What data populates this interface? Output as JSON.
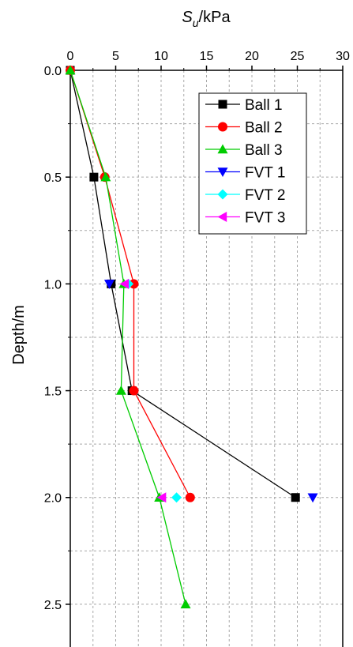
{
  "chart_data": {
    "type": "scatter",
    "xlabel_main": "S",
    "xlabel_sub": "u",
    "xlabel_unit": "/kPa",
    "ylabel": "Depth/m",
    "xlim": [
      0,
      30
    ],
    "ylim": [
      0,
      2.7
    ],
    "y_reversed": true,
    "x_axis_position": "top",
    "grid": true,
    "legend_position": "top-right",
    "x_ticks": [
      "0",
      "5",
      "10",
      "15",
      "20",
      "25",
      "30"
    ],
    "y_ticks": [
      "0.0",
      "0.5",
      "1.0",
      "1.5",
      "2.0",
      "2.5"
    ],
    "series": [
      {
        "name": "Ball 1",
        "color": "#000000",
        "marker": "square",
        "line": true,
        "x": [
          0,
          2.6,
          4.5,
          6.8,
          24.8
        ],
        "y": [
          0,
          0.5,
          1.0,
          1.5,
          2.0
        ]
      },
      {
        "name": "Ball 2",
        "color": "#ff0000",
        "marker": "circle",
        "line": true,
        "x": [
          0,
          3.8,
          7.0,
          7.0,
          13.2
        ],
        "y": [
          0,
          0.5,
          1.0,
          1.5,
          2.0
        ]
      },
      {
        "name": "Ball 3",
        "color": "#00cc00",
        "marker": "triangle-up",
        "line": true,
        "x": [
          0,
          3.9,
          5.9,
          5.6,
          9.8,
          12.7
        ],
        "y": [
          0,
          0.5,
          1.0,
          1.5,
          2.0,
          2.5
        ]
      },
      {
        "name": "FVT 1",
        "color": "#0000ff",
        "marker": "triangle-down",
        "line": false,
        "x": [
          4.3,
          26.7
        ],
        "y": [
          1.0,
          2.0
        ]
      },
      {
        "name": "FVT 2",
        "color": "#00ffff",
        "marker": "diamond",
        "line": false,
        "x": [
          6.4,
          11.7
        ],
        "y": [
          1.0,
          2.0
        ]
      },
      {
        "name": "FVT 3",
        "color": "#ff00ff",
        "marker": "triangle-left",
        "line": false,
        "x": [
          6.0,
          10.1
        ],
        "y": [
          1.0,
          2.0
        ]
      }
    ]
  }
}
